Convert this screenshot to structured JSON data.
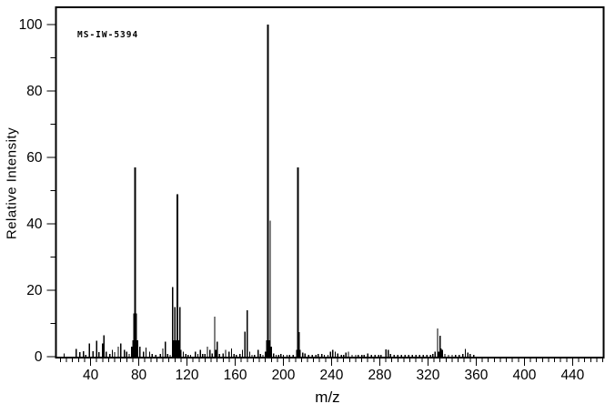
{
  "page": {
    "background": "#ffffff",
    "foreground": "#000000"
  },
  "chart_data": {
    "type": "bar",
    "subtype": "mass-spectrum",
    "annotation": "MS-IW-5394",
    "xlabel": "m/z",
    "ylabel": "Relative Intensity",
    "xlim": [
      12,
      465
    ],
    "ylim": [
      0,
      105
    ],
    "grid": false,
    "x_major_ticks": [
      40,
      80,
      120,
      160,
      200,
      240,
      280,
      320,
      360,
      400,
      440
    ],
    "x_minor_step": 5,
    "y_major_ticks": [
      0,
      20,
      40,
      60,
      80,
      100
    ],
    "y_minor_step": 10,
    "base_peak": {
      "mz": 187,
      "intensity": 100
    },
    "peaks": [
      [
        18,
        1.0
      ],
      [
        28,
        2.3
      ],
      [
        31,
        1.4
      ],
      [
        34,
        1.7
      ],
      [
        36,
        0.6
      ],
      [
        39,
        4.0
      ],
      [
        42,
        1.7
      ],
      [
        45,
        4.8
      ],
      [
        47,
        1.4
      ],
      [
        50,
        4.0
      ],
      [
        51,
        6.4
      ],
      [
        53,
        1.5
      ],
      [
        56,
        0.8
      ],
      [
        58,
        2.0
      ],
      [
        60,
        1.4
      ],
      [
        63,
        3.0
      ],
      [
        65,
        4.0
      ],
      [
        68,
        2.0
      ],
      [
        70,
        1.5
      ],
      [
        72,
        0.8
      ],
      [
        74,
        3.0
      ],
      [
        75,
        5.0
      ],
      [
        76,
        13.0
      ],
      [
        77,
        57.0
      ],
      [
        78,
        13.0
      ],
      [
        79,
        5.0
      ],
      [
        81,
        3.0
      ],
      [
        84,
        1.5
      ],
      [
        86,
        2.8
      ],
      [
        89,
        1.5
      ],
      [
        91,
        0.8
      ],
      [
        94,
        0.6
      ],
      [
        98,
        0.8
      ],
      [
        100,
        2.5
      ],
      [
        102,
        4.5
      ],
      [
        104,
        0.8
      ],
      [
        106,
        0.6
      ],
      [
        108,
        21.0
      ],
      [
        109,
        5.0
      ],
      [
        110,
        15.0
      ],
      [
        111,
        5.0
      ],
      [
        112,
        49.0
      ],
      [
        113,
        5.0
      ],
      [
        114,
        15.0
      ],
      [
        115,
        2.0
      ],
      [
        117,
        1.5
      ],
      [
        119,
        0.8
      ],
      [
        121,
        0.6
      ],
      [
        123,
        0.6
      ],
      [
        127,
        1.5
      ],
      [
        129,
        0.8
      ],
      [
        131,
        2.0
      ],
      [
        133,
        0.8
      ],
      [
        135,
        0.8
      ],
      [
        137,
        3.0
      ],
      [
        139,
        2.0
      ],
      [
        141,
        1.0
      ],
      [
        143,
        12.0
      ],
      [
        144,
        2.0
      ],
      [
        145,
        4.5
      ],
      [
        147,
        0.8
      ],
      [
        150,
        1.0
      ],
      [
        152,
        2.0
      ],
      [
        155,
        1.5
      ],
      [
        157,
        2.5
      ],
      [
        159,
        0.8
      ],
      [
        161,
        0.6
      ],
      [
        164,
        0.8
      ],
      [
        166,
        2.0
      ],
      [
        168,
        7.5
      ],
      [
        170,
        14.0
      ],
      [
        172,
        1.5
      ],
      [
        174,
        0.6
      ],
      [
        176,
        0.6
      ],
      [
        179,
        2.0
      ],
      [
        181,
        0.8
      ],
      [
        183,
        0.6
      ],
      [
        185,
        1.5
      ],
      [
        186,
        5.0
      ],
      [
        187,
        100.0
      ],
      [
        188,
        5.0
      ],
      [
        189,
        41.0
      ],
      [
        190,
        3.0
      ],
      [
        192,
        1.0
      ],
      [
        194,
        0.6
      ],
      [
        196,
        0.6
      ],
      [
        198,
        0.8
      ],
      [
        200,
        0.5
      ],
      [
        203,
        0.6
      ],
      [
        205,
        0.5
      ],
      [
        208,
        0.6
      ],
      [
        211,
        2.0
      ],
      [
        212,
        57.0
      ],
      [
        213,
        7.4
      ],
      [
        214,
        2.0
      ],
      [
        216,
        1.2
      ],
      [
        218,
        1.0
      ],
      [
        221,
        0.6
      ],
      [
        224,
        0.5
      ],
      [
        227,
        0.6
      ],
      [
        229,
        0.8
      ],
      [
        232,
        0.8
      ],
      [
        234,
        0.5
      ],
      [
        237,
        0.6
      ],
      [
        239,
        1.5
      ],
      [
        241,
        2.0
      ],
      [
        243,
        1.5
      ],
      [
        245,
        1.0
      ],
      [
        248,
        0.6
      ],
      [
        250,
        0.6
      ],
      [
        252,
        1.2
      ],
      [
        254,
        1.5
      ],
      [
        257,
        0.6
      ],
      [
        260,
        0.5
      ],
      [
        262,
        0.5
      ],
      [
        265,
        0.6
      ],
      [
        267,
        0.5
      ],
      [
        270,
        1.0
      ],
      [
        273,
        0.5
      ],
      [
        276,
        0.5
      ],
      [
        279,
        0.6
      ],
      [
        281,
        0.5
      ],
      [
        285,
        2.2
      ],
      [
        287,
        2.0
      ],
      [
        289,
        0.8
      ],
      [
        292,
        0.5
      ],
      [
        295,
        0.5
      ],
      [
        298,
        0.6
      ],
      [
        301,
        0.5
      ],
      [
        304,
        0.5
      ],
      [
        307,
        0.6
      ],
      [
        310,
        0.5
      ],
      [
        313,
        0.5
      ],
      [
        316,
        0.6
      ],
      [
        319,
        0.5
      ],
      [
        322,
        0.6
      ],
      [
        324,
        0.8
      ],
      [
        326,
        1.5
      ],
      [
        328,
        8.5
      ],
      [
        329,
        1.5
      ],
      [
        330,
        6.3
      ],
      [
        331,
        2.5
      ],
      [
        332,
        2.0
      ],
      [
        334,
        0.8
      ],
      [
        337,
        0.5
      ],
      [
        340,
        0.5
      ],
      [
        343,
        0.6
      ],
      [
        346,
        0.5
      ],
      [
        349,
        0.8
      ],
      [
        351,
        2.3
      ],
      [
        353,
        1.2
      ],
      [
        355,
        0.8
      ],
      [
        358,
        0.5
      ]
    ]
  }
}
